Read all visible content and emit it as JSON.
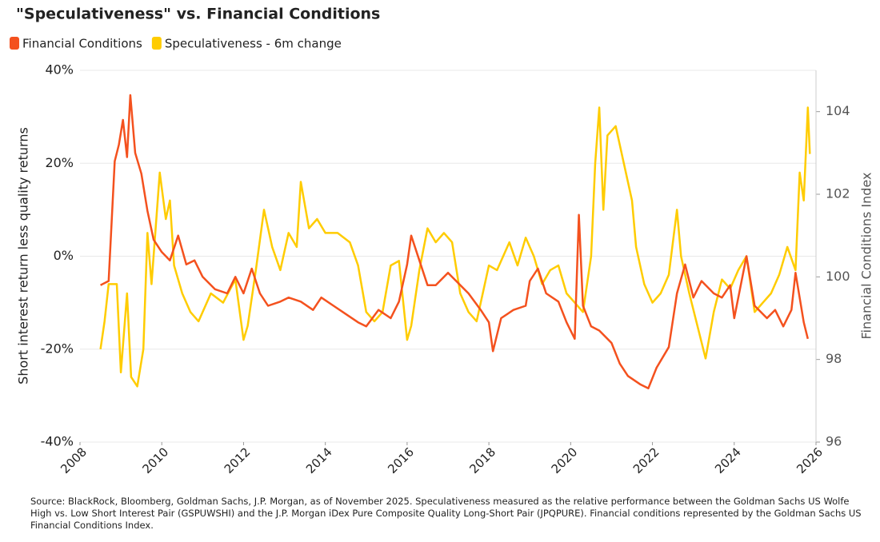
{
  "chart_data": {
    "type": "line",
    "title": "\"Speculativeness\" vs. Financial Conditions",
    "ylabel": "Short interest return less quality returns",
    "y2label": "Financial Conditions Index",
    "footnote": "Source: BlackRock, Bloomberg, Goldman Sachs, J.P. Morgan, as of November 2025. Speculativeness measured as the relative performance between the Goldman Sachs US Wolfe High vs. Low Short Interest Pair (GSPUWSHI) and the J.P. Morgan iDex Pure Composite Quality Long-Short Pair (JPQPURE). Financial conditions represented by the Goldman Sachs US Financial Conditions Index.",
    "xlim": [
      2008,
      2026
    ],
    "xticks": [
      2008,
      2010,
      2012,
      2014,
      2016,
      2018,
      2020,
      2022,
      2024,
      2026
    ],
    "ylim": [
      -40,
      40
    ],
    "yticks": [
      {
        "value": -40,
        "label": "-40%"
      },
      {
        "value": -20,
        "label": "-20%"
      },
      {
        "value": 0,
        "label": "0%"
      },
      {
        "value": 20,
        "label": "20%"
      },
      {
        "value": 40,
        "label": "40%"
      }
    ],
    "y2lim": [
      96,
      105
    ],
    "y2ticks": [
      96,
      98,
      100,
      102,
      104
    ],
    "grid": true,
    "legend": "top-left",
    "series": [
      {
        "name": "Financial Conditions",
        "color": "#f4511e",
        "axis": "y2",
        "x": [
          2008.5,
          2008.7,
          2008.85,
          2008.95,
          2009.05,
          2009.15,
          2009.23,
          2009.35,
          2009.5,
          2009.65,
          2009.8,
          2010.0,
          2010.2,
          2010.4,
          2010.6,
          2010.8,
          2011.0,
          2011.3,
          2011.6,
          2011.8,
          2012.0,
          2012.2,
          2012.4,
          2012.6,
          2012.9,
          2013.1,
          2013.4,
          2013.7,
          2013.9,
          2014.2,
          2014.5,
          2014.8,
          2015.0,
          2015.3,
          2015.6,
          2015.8,
          2016.0,
          2016.1,
          2016.3,
          2016.5,
          2016.7,
          2017.0,
          2017.2,
          2017.5,
          2017.8,
          2018.0,
          2018.1,
          2018.3,
          2018.6,
          2018.9,
          2019.0,
          2019.2,
          2019.4,
          2019.7,
          2019.9,
          2020.1,
          2020.2,
          2020.3,
          2020.5,
          2020.7,
          2021.0,
          2021.2,
          2021.4,
          2021.7,
          2021.9,
          2022.1,
          2022.4,
          2022.6,
          2022.8,
          2023.0,
          2023.2,
          2023.5,
          2023.7,
          2023.9,
          2024.0,
          2024.3,
          2024.5,
          2024.8,
          2025.0,
          2025.2,
          2025.4,
          2025.5,
          2025.7,
          2025.8
        ],
        "values": [
          99.8,
          99.9,
          102.8,
          103.2,
          103.8,
          102.9,
          104.4,
          103.0,
          102.5,
          101.6,
          100.9,
          100.6,
          100.4,
          101.0,
          100.3,
          100.4,
          100.0,
          99.7,
          99.6,
          100.0,
          99.6,
          100.2,
          99.6,
          99.3,
          99.4,
          99.5,
          99.4,
          99.2,
          99.5,
          99.3,
          99.1,
          98.9,
          98.8,
          99.2,
          99.0,
          99.4,
          100.3,
          101.0,
          100.4,
          99.8,
          99.8,
          100.1,
          99.9,
          99.6,
          99.2,
          98.9,
          98.2,
          99.0,
          99.2,
          99.3,
          99.9,
          100.2,
          99.6,
          99.4,
          98.9,
          98.5,
          101.5,
          99.3,
          98.8,
          98.7,
          98.4,
          97.9,
          97.6,
          97.4,
          97.3,
          97.8,
          98.3,
          99.6,
          100.3,
          99.5,
          99.9,
          99.6,
          99.5,
          99.8,
          99.0,
          100.5,
          99.3,
          99.0,
          99.2,
          98.8,
          99.2,
          100.1,
          98.9,
          98.5
        ]
      },
      {
        "name": "Speculativeness - 6m change",
        "color": "#ffcc00",
        "x": [
          2008.5,
          2008.6,
          2008.7,
          2008.9,
          2009.0,
          2009.15,
          2009.25,
          2009.4,
          2009.55,
          2009.65,
          2009.75,
          2009.95,
          2010.1,
          2010.2,
          2010.3,
          2010.5,
          2010.7,
          2010.9,
          2011.2,
          2011.5,
          2011.8,
          2012.0,
          2012.1,
          2012.3,
          2012.5,
          2012.7,
          2012.9,
          2013.1,
          2013.3,
          2013.4,
          2013.6,
          2013.8,
          2014.0,
          2014.3,
          2014.6,
          2014.8,
          2015.0,
          2015.2,
          2015.4,
          2015.6,
          2015.8,
          2016.0,
          2016.1,
          2016.3,
          2016.5,
          2016.7,
          2016.9,
          2017.1,
          2017.3,
          2017.5,
          2017.7,
          2017.9,
          2018.0,
          2018.2,
          2018.5,
          2018.7,
          2018.9,
          2019.1,
          2019.3,
          2019.5,
          2019.7,
          2019.9,
          2020.1,
          2020.3,
          2020.5,
          2020.6,
          2020.7,
          2020.8,
          2020.9,
          2021.1,
          2021.3,
          2021.5,
          2021.6,
          2021.8,
          2022.0,
          2022.2,
          2022.4,
          2022.6,
          2022.7,
          2022.9,
          2023.1,
          2023.3,
          2023.5,
          2023.7,
          2023.9,
          2024.1,
          2024.3,
          2024.5,
          2024.7,
          2024.9,
          2025.1,
          2025.3,
          2025.5,
          2025.6,
          2025.7,
          2025.8,
          2025.85
        ],
        "values": [
          -20,
          -14,
          -6,
          -6,
          -25,
          -8,
          -26,
          -28,
          -20,
          5,
          -6,
          18,
          8,
          12,
          -2,
          -8,
          -12,
          -14,
          -8,
          -10,
          -5,
          -18,
          -15,
          -3,
          10,
          2,
          -3,
          5,
          2,
          16,
          6,
          8,
          5,
          5,
          3,
          -2,
          -12,
          -14,
          -12,
          -2,
          -1,
          -18,
          -15,
          -3,
          6,
          3,
          5,
          3,
          -8,
          -12,
          -14,
          -6,
          -2,
          -3,
          3,
          -2,
          4,
          0,
          -6,
          -3,
          -2,
          -8,
          -10,
          -12,
          0,
          20,
          32,
          10,
          26,
          28,
          20,
          12,
          2,
          -6,
          -10,
          -8,
          -4,
          10,
          0,
          -8,
          -15,
          -22,
          -12,
          -5,
          -7,
          -3,
          0,
          -12,
          -10,
          -8,
          -4,
          2,
          -3,
          18,
          12,
          32,
          22
        ]
      }
    ]
  }
}
